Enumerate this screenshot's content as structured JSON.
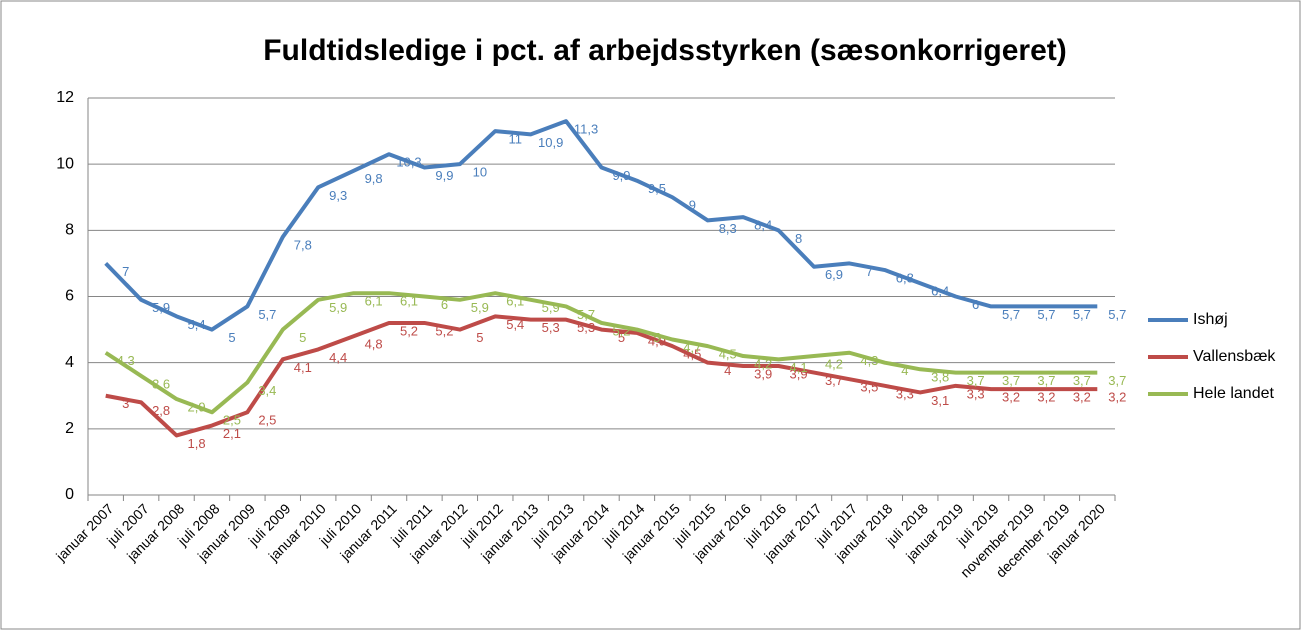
{
  "chart_data": {
    "type": "line",
    "title": "Fuldtidsledige i pct. af arbejdsstyrken (sæsonkorrigeret)",
    "categories": [
      "januar 2007",
      "juli 2007",
      "januar 2008",
      "juli 2008",
      "januar 2009",
      "juli 2009",
      "januar 2010",
      "juli 2010",
      "januar 2011",
      "juli 2011",
      "januar 2012",
      "juli 2012",
      "januar 2013",
      "juli 2013",
      "januar 2014",
      "juli 2014",
      "januar 2015",
      "juli 2015",
      "januar 2016",
      "juli 2016",
      "januar 2017",
      "juli 2017",
      "januar 2018",
      "juli 2018",
      "januar 2019",
      "juli 2019",
      "november 2019",
      "december 2019",
      "januar 2020"
    ],
    "series": [
      {
        "name": "Ishøj",
        "color": "#4a7ebb",
        "values": [
          7,
          5.9,
          5.4,
          5,
          5.7,
          7.8,
          9.3,
          9.8,
          10.3,
          9.9,
          10,
          11,
          10.9,
          11.3,
          9.9,
          9.5,
          9,
          8.3,
          8.4,
          8,
          6.9,
          7,
          6.8,
          6.4,
          6,
          5.7,
          5.7,
          5.7,
          5.7
        ],
        "value_labels": [
          "7",
          "5,9",
          "5,4",
          "5",
          "5,7",
          "7,8",
          "9,3",
          "9,8",
          "10,3",
          "9,9",
          "10",
          "11",
          "10,9",
          "11,3",
          "9,9",
          "9,5",
          "9",
          "8,3",
          "8,4",
          "8",
          "6,9",
          "7",
          "6,8",
          "6,4",
          "6",
          "5,7",
          "5,7",
          "5,7",
          "5,7"
        ]
      },
      {
        "name": "Vallensbæk",
        "color": "#be4b48",
        "values": [
          3,
          2.8,
          1.8,
          2.1,
          2.5,
          4.1,
          4.4,
          4.8,
          5.2,
          5.2,
          5,
          5.4,
          5.3,
          5.3,
          5,
          4.9,
          4.5,
          4,
          3.9,
          3.9,
          3.7,
          3.5,
          3.3,
          3.1,
          3.3,
          3.2,
          3.2,
          3.2,
          3.2
        ],
        "value_labels": [
          "3",
          "2,8",
          "1,8",
          "2,1",
          "2,5",
          "4,1",
          "4,4",
          "4,8",
          "5,2",
          "5,2",
          "5",
          "5,4",
          "5,3",
          "5,3",
          "5",
          "4,9",
          "4,5",
          "4",
          "3,9",
          "3,9",
          "3,7",
          "3,5",
          "3,3",
          "3,1",
          "3,3",
          "3,2",
          "3,2",
          "3,2",
          "3,2"
        ]
      },
      {
        "name": "Hele landet",
        "color": "#98b954",
        "values": [
          4.3,
          3.6,
          2.9,
          2.5,
          3.4,
          5,
          5.9,
          6.1,
          6.1,
          6,
          5.9,
          6.1,
          5.9,
          5.7,
          5.2,
          5,
          4.7,
          4.5,
          4.2,
          4.1,
          4.2,
          4.3,
          4,
          3.8,
          3.7,
          3.7,
          3.7,
          3.7,
          3.7
        ],
        "value_labels": [
          "4,3",
          "3,6",
          "2,9",
          "2,5",
          "3,4",
          "5",
          "5,9",
          "6,1",
          "6,1",
          "6",
          "5,9",
          "6,1",
          "5,9",
          "5,7",
          "5,2",
          "5",
          "4,7",
          "4,5",
          "4,2",
          "4,1",
          "4,2",
          "4,3",
          "4",
          "3,8",
          "3,7",
          "3,7",
          "3,7",
          "3,7",
          "3,7"
        ]
      }
    ],
    "ylim": [
      0,
      12
    ],
    "yticks": [
      0,
      2,
      4,
      6,
      8,
      10,
      12
    ],
    "grid": true,
    "legend": "right"
  }
}
